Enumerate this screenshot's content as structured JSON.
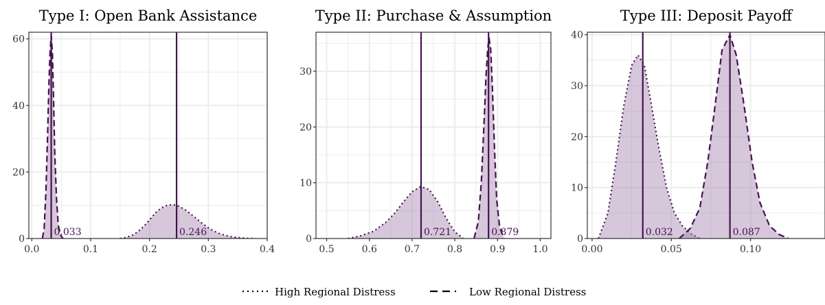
{
  "chart_data": [
    {
      "type": "area",
      "title": "Type I: Open Bank Assistance",
      "xlim": [
        -0.005,
        0.4
      ],
      "ylim": [
        0,
        62
      ],
      "x_ticks": [
        0.0,
        0.1,
        0.2,
        0.3,
        0.4
      ],
      "x_tick_labels": [
        "0.0",
        "0.1",
        "0.2",
        "0.3",
        "0.4"
      ],
      "y_ticks": [
        0,
        20,
        40,
        60
      ],
      "y_tick_labels": [
        "0",
        "20",
        "40",
        "60"
      ],
      "grid": true,
      "series": [
        {
          "name": "High Regional Distress",
          "linestyle": "dotted",
          "x": [
            0.15,
            0.16,
            0.17,
            0.18,
            0.19,
            0.2,
            0.21,
            0.22,
            0.23,
            0.24,
            0.25,
            0.26,
            0.27,
            0.28,
            0.29,
            0.3,
            0.31,
            0.32,
            0.33,
            0.34,
            0.35,
            0.36,
            0.37,
            0.38
          ],
          "y": [
            0,
            0.3,
            0.9,
            2.0,
            3.6,
            5.6,
            7.7,
            9.2,
            10.0,
            10.2,
            9.7,
            8.7,
            7.4,
            5.9,
            4.5,
            3.2,
            2.2,
            1.4,
            0.9,
            0.5,
            0.3,
            0.15,
            0.05,
            0
          ]
        },
        {
          "name": "Low Regional Distress",
          "linestyle": "dashed",
          "x": [
            0.018,
            0.021,
            0.024,
            0.027,
            0.029,
            0.031,
            0.033,
            0.035,
            0.037,
            0.039,
            0.042,
            0.045,
            0.049,
            0.053
          ],
          "y": [
            0,
            3,
            14,
            32,
            46,
            56,
            61,
            56,
            42,
            26,
            12,
            4,
            1,
            0
          ]
        }
      ],
      "vlines": [
        0.033,
        0.246
      ],
      "annotations": [
        "0.033",
        "0.246"
      ]
    },
    {
      "type": "area",
      "title": "Type II: Purchase & Assumption",
      "xlim": [
        0.475,
        1.025
      ],
      "ylim": [
        0,
        37
      ],
      "x_ticks": [
        0.5,
        0.6,
        0.7,
        0.8,
        0.9,
        1.0
      ],
      "x_tick_labels": [
        "0.5",
        "0.6",
        "0.7",
        "0.8",
        "0.9",
        "1.0"
      ],
      "y_ticks": [
        0,
        10,
        20,
        30
      ],
      "y_tick_labels": [
        "0",
        "10",
        "20",
        "30"
      ],
      "grid": true,
      "series": [
        {
          "name": "High Regional Distress",
          "linestyle": "dotted",
          "x": [
            0.55,
            0.58,
            0.61,
            0.64,
            0.66,
            0.68,
            0.7,
            0.72,
            0.74,
            0.76,
            0.78,
            0.8,
            0.82
          ],
          "y": [
            0,
            0.5,
            1.3,
            3.0,
            4.6,
            6.6,
            8.4,
            9.3,
            8.8,
            6.6,
            3.6,
            1.2,
            0
          ]
        },
        {
          "name": "Low Regional Distress",
          "linestyle": "dashed",
          "x": [
            0.845,
            0.855,
            0.862,
            0.868,
            0.873,
            0.877,
            0.88,
            0.884,
            0.888,
            0.893,
            0.898,
            0.905,
            0.915
          ],
          "y": [
            0,
            3,
            10,
            20,
            29,
            34,
            36,
            34,
            27,
            16,
            7,
            2,
            0
          ]
        }
      ],
      "vlines": [
        0.721,
        0.879
      ],
      "annotations": [
        "0.721",
        "0.879"
      ]
    },
    {
      "type": "area",
      "title": "Type III: Deposit Payoff",
      "xlim": [
        -0.003,
        0.147
      ],
      "ylim": [
        0,
        40.5
      ],
      "x_ticks": [
        0.0,
        0.05,
        0.1
      ],
      "x_tick_labels": [
        "0.00",
        "0.05",
        "0.10"
      ],
      "y_ticks": [
        0,
        10,
        20,
        30,
        40
      ],
      "y_tick_labels": [
        "0",
        "10",
        "20",
        "30",
        "40"
      ],
      "grid": true,
      "series": [
        {
          "name": "High Regional Distress",
          "linestyle": "dotted",
          "x": [
            0.004,
            0.01,
            0.015,
            0.02,
            0.025,
            0.029,
            0.033,
            0.037,
            0.042,
            0.047,
            0.052,
            0.057,
            0.062,
            0.068
          ],
          "y": [
            0,
            5,
            15,
            26,
            34,
            36,
            34,
            27,
            18,
            10,
            5,
            2.5,
            1,
            0
          ]
        },
        {
          "name": "Low Regional Distress",
          "linestyle": "dashed",
          "x": [
            0.055,
            0.062,
            0.068,
            0.073,
            0.078,
            0.082,
            0.087,
            0.091,
            0.096,
            0.101,
            0.106,
            0.112,
            0.118,
            0.124
          ],
          "y": [
            0,
            2,
            6,
            15,
            27,
            37,
            40,
            36,
            26,
            15,
            7,
            2.5,
            0.8,
            0
          ]
        }
      ],
      "vlines": [
        0.032,
        0.087
      ],
      "annotations": [
        "0.032",
        "0.087"
      ]
    }
  ],
  "legend": {
    "position": "bottom",
    "items": [
      {
        "label": "High Regional Distress",
        "linestyle": "dotted"
      },
      {
        "label": "Low Regional Distress",
        "linestyle": "dashed"
      }
    ]
  },
  "colors": {
    "line": "#44114f",
    "fill": "#a582ad",
    "grid": "#ebebeb",
    "frame": "#333333",
    "tick_text": "#333333"
  }
}
